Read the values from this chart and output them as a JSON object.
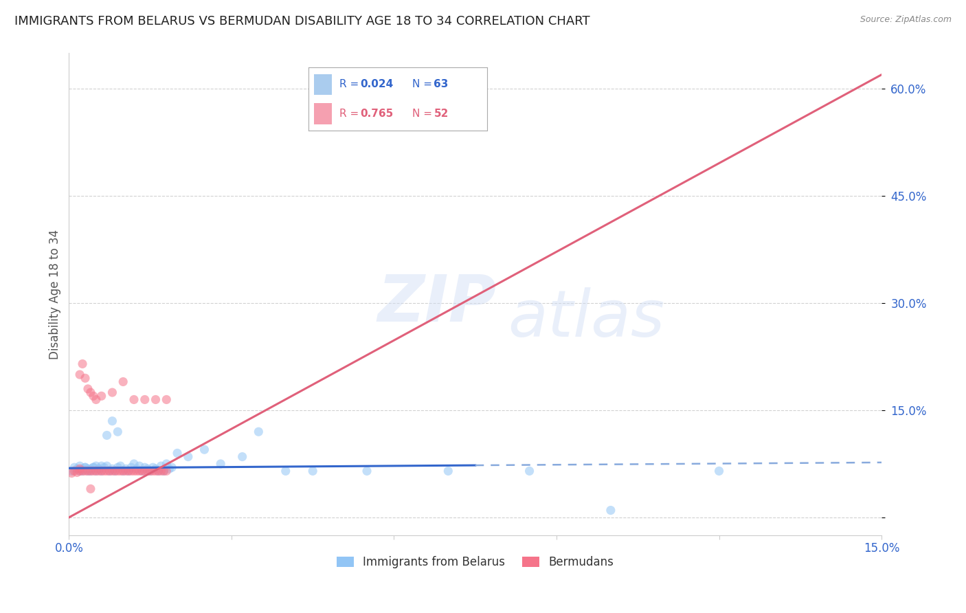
{
  "title": "IMMIGRANTS FROM BELARUS VS BERMUDAN DISABILITY AGE 18 TO 34 CORRELATION CHART",
  "source": "Source: ZipAtlas.com",
  "ylabel": "Disability Age 18 to 34",
  "xlim": [
    0.0,
    0.15
  ],
  "ylim": [
    -0.025,
    0.65
  ],
  "watermark_zip": "ZIP",
  "watermark_atlas": "atlas",
  "scatter_belarus": {
    "color": "#92c5f5",
    "edge_color": "#6aaae8",
    "alpha": 0.55,
    "size": 90,
    "x": [
      0.0005,
      0.001,
      0.0015,
      0.002,
      0.0025,
      0.003,
      0.0035,
      0.004,
      0.0045,
      0.005,
      0.0055,
      0.006,
      0.0065,
      0.007,
      0.0075,
      0.008,
      0.0085,
      0.009,
      0.0095,
      0.01,
      0.0105,
      0.011,
      0.0115,
      0.012,
      0.0125,
      0.013,
      0.0135,
      0.014,
      0.0145,
      0.015,
      0.0155,
      0.016,
      0.0165,
      0.017,
      0.0175,
      0.018,
      0.0185,
      0.019,
      0.002,
      0.0025,
      0.003,
      0.0035,
      0.004,
      0.0045,
      0.005,
      0.0055,
      0.006,
      0.007,
      0.008,
      0.009,
      0.02,
      0.022,
      0.025,
      0.028,
      0.032,
      0.035,
      0.04,
      0.045,
      0.055,
      0.07,
      0.085,
      0.1,
      0.12
    ],
    "y": [
      0.065,
      0.07,
      0.068,
      0.072,
      0.065,
      0.07,
      0.068,
      0.065,
      0.07,
      0.072,
      0.068,
      0.065,
      0.07,
      0.072,
      0.065,
      0.068,
      0.065,
      0.07,
      0.072,
      0.065,
      0.068,
      0.065,
      0.07,
      0.075,
      0.068,
      0.072,
      0.065,
      0.07,
      0.068,
      0.065,
      0.07,
      0.068,
      0.065,
      0.072,
      0.065,
      0.075,
      0.068,
      0.07,
      0.065,
      0.068,
      0.07,
      0.065,
      0.068,
      0.07,
      0.065,
      0.068,
      0.072,
      0.115,
      0.135,
      0.12,
      0.09,
      0.085,
      0.095,
      0.075,
      0.085,
      0.12,
      0.065,
      0.065,
      0.065,
      0.065,
      0.065,
      0.01,
      0.065
    ]
  },
  "scatter_bermuda": {
    "color": "#f5748a",
    "edge_color": "#e05070",
    "alpha": 0.55,
    "size": 90,
    "x": [
      0.0005,
      0.001,
      0.0015,
      0.002,
      0.0025,
      0.003,
      0.0035,
      0.004,
      0.0045,
      0.005,
      0.0055,
      0.006,
      0.0065,
      0.007,
      0.0075,
      0.008,
      0.0085,
      0.009,
      0.0095,
      0.01,
      0.0105,
      0.011,
      0.0115,
      0.012,
      0.0125,
      0.013,
      0.0135,
      0.014,
      0.0145,
      0.015,
      0.0155,
      0.016,
      0.0165,
      0.017,
      0.0175,
      0.018,
      0.002,
      0.0025,
      0.003,
      0.0035,
      0.004,
      0.0045,
      0.005,
      0.006,
      0.008,
      0.01,
      0.012,
      0.014,
      0.016,
      0.018,
      0.002,
      0.004
    ],
    "y": [
      0.062,
      0.065,
      0.063,
      0.068,
      0.065,
      0.065,
      0.065,
      0.065,
      0.065,
      0.065,
      0.065,
      0.065,
      0.065,
      0.065,
      0.065,
      0.065,
      0.065,
      0.065,
      0.065,
      0.065,
      0.065,
      0.065,
      0.065,
      0.065,
      0.065,
      0.065,
      0.065,
      0.065,
      0.065,
      0.065,
      0.065,
      0.065,
      0.065,
      0.065,
      0.065,
      0.065,
      0.2,
      0.215,
      0.195,
      0.18,
      0.175,
      0.17,
      0.165,
      0.17,
      0.175,
      0.19,
      0.165,
      0.165,
      0.165,
      0.165,
      0.065,
      0.04
    ]
  },
  "line_belarus_solid": {
    "color": "#3366cc",
    "linewidth": 2.2,
    "x": [
      0.0,
      0.075
    ],
    "y": [
      0.069,
      0.073
    ]
  },
  "line_belarus_dashed": {
    "color": "#88aadd",
    "linewidth": 1.8,
    "x": [
      0.075,
      0.15
    ],
    "y": [
      0.073,
      0.077
    ]
  },
  "line_bermuda": {
    "color": "#e0607a",
    "linewidth": 2.2,
    "x": [
      0.0,
      0.15
    ],
    "y": [
      0.0,
      0.62
    ]
  },
  "grid_color": "#cccccc",
  "background_color": "#ffffff",
  "title_color": "#222222",
  "axis_label_color": "#3366cc",
  "ylabel_color": "#555555",
  "title_fontsize": 13,
  "axis_fontsize": 12,
  "tick_fontsize": 12,
  "legend_blue_color": "#3366cc",
  "legend_pink_color": "#e0607a",
  "legend_box_blue": "#aaccee",
  "legend_box_pink": "#f5a0b0"
}
